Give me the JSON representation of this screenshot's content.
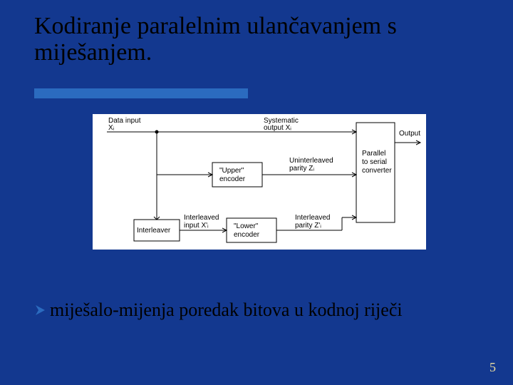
{
  "slide": {
    "background_color": "#13388f",
    "pagenum_color": "#e9dca0",
    "page_number": "5"
  },
  "title": {
    "line1": "Kodiranje paralelnim ulančavanjem s",
    "line2": "miješanjem.",
    "font_size": 34,
    "underline_color": "#2b6bbf",
    "underline_width": 300
  },
  "figure": {
    "background_color": "#ffffff",
    "line_color": "#000000",
    "line_width": 1,
    "labels": {
      "data_input_l1": "Data input",
      "data_input_l2": "Xᵢ",
      "systematic_l1": "Systematic",
      "systematic_l2": "output Xᵢ",
      "upper_enc_l1": "\"Upper\"",
      "upper_enc_l2": "encoder",
      "uninterleaved_l1": "Uninterleaved",
      "uninterleaved_l2": "parity Zᵢ",
      "interleaver": "Interleaver",
      "interleaved_in_l1": "Interleaved",
      "interleaved_in_l2": "input X'ᵢ",
      "lower_enc_l1": "\"Lower\"",
      "lower_enc_l2": "encoder",
      "interleaved_p_l1": "Interleaved",
      "interleaved_p_l2": "parity Z'ᵢ",
      "converter_l1": "Parallel",
      "converter_l2": "to serial",
      "converter_l3": "converter",
      "output": "Output"
    }
  },
  "bullet": {
    "arrow_color": "#2b6bbf",
    "text": "miješalo-mijenja poredak bitova u kodnoj riječi",
    "font_size": 26
  }
}
